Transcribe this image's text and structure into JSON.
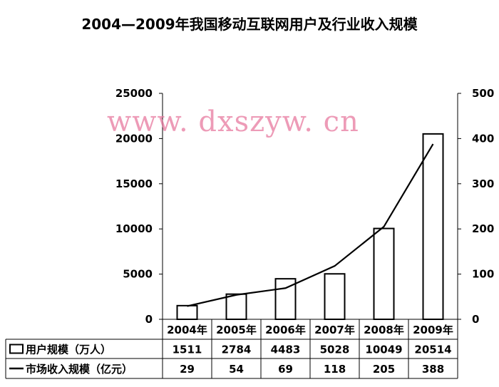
{
  "page": {
    "title": "2004—2009年我国移动互联网用户及行业收入规模",
    "watermark": "www. dxszyw. cn"
  },
  "chart_data": {
    "type": "bar",
    "title": "2004—2009年我国移动互联网用户及行业收入规模",
    "categories": [
      "2004年",
      "2005年",
      "2006年",
      "2007年",
      "2008年",
      "2009年"
    ],
    "series": [
      {
        "name": "用户规模（万人）",
        "type": "bar",
        "axis": "left",
        "values": [
          1511,
          2784,
          4483,
          5028,
          10049,
          20514
        ]
      },
      {
        "name": "市场收入规模（亿元）",
        "type": "line",
        "axis": "right",
        "values": [
          29,
          54,
          69,
          118,
          205,
          388
        ]
      }
    ],
    "y_left": {
      "min": 0,
      "max": 25000,
      "ticks": [
        0,
        5000,
        10000,
        15000,
        20000,
        25000
      ]
    },
    "y_right": {
      "min": 0,
      "max": 500,
      "ticks": [
        0,
        100,
        200,
        300,
        400,
        500
      ]
    },
    "grid": false,
    "legend": "data-table",
    "colors": {
      "bar_fill": "#ffffff",
      "stroke": "#000000"
    }
  }
}
